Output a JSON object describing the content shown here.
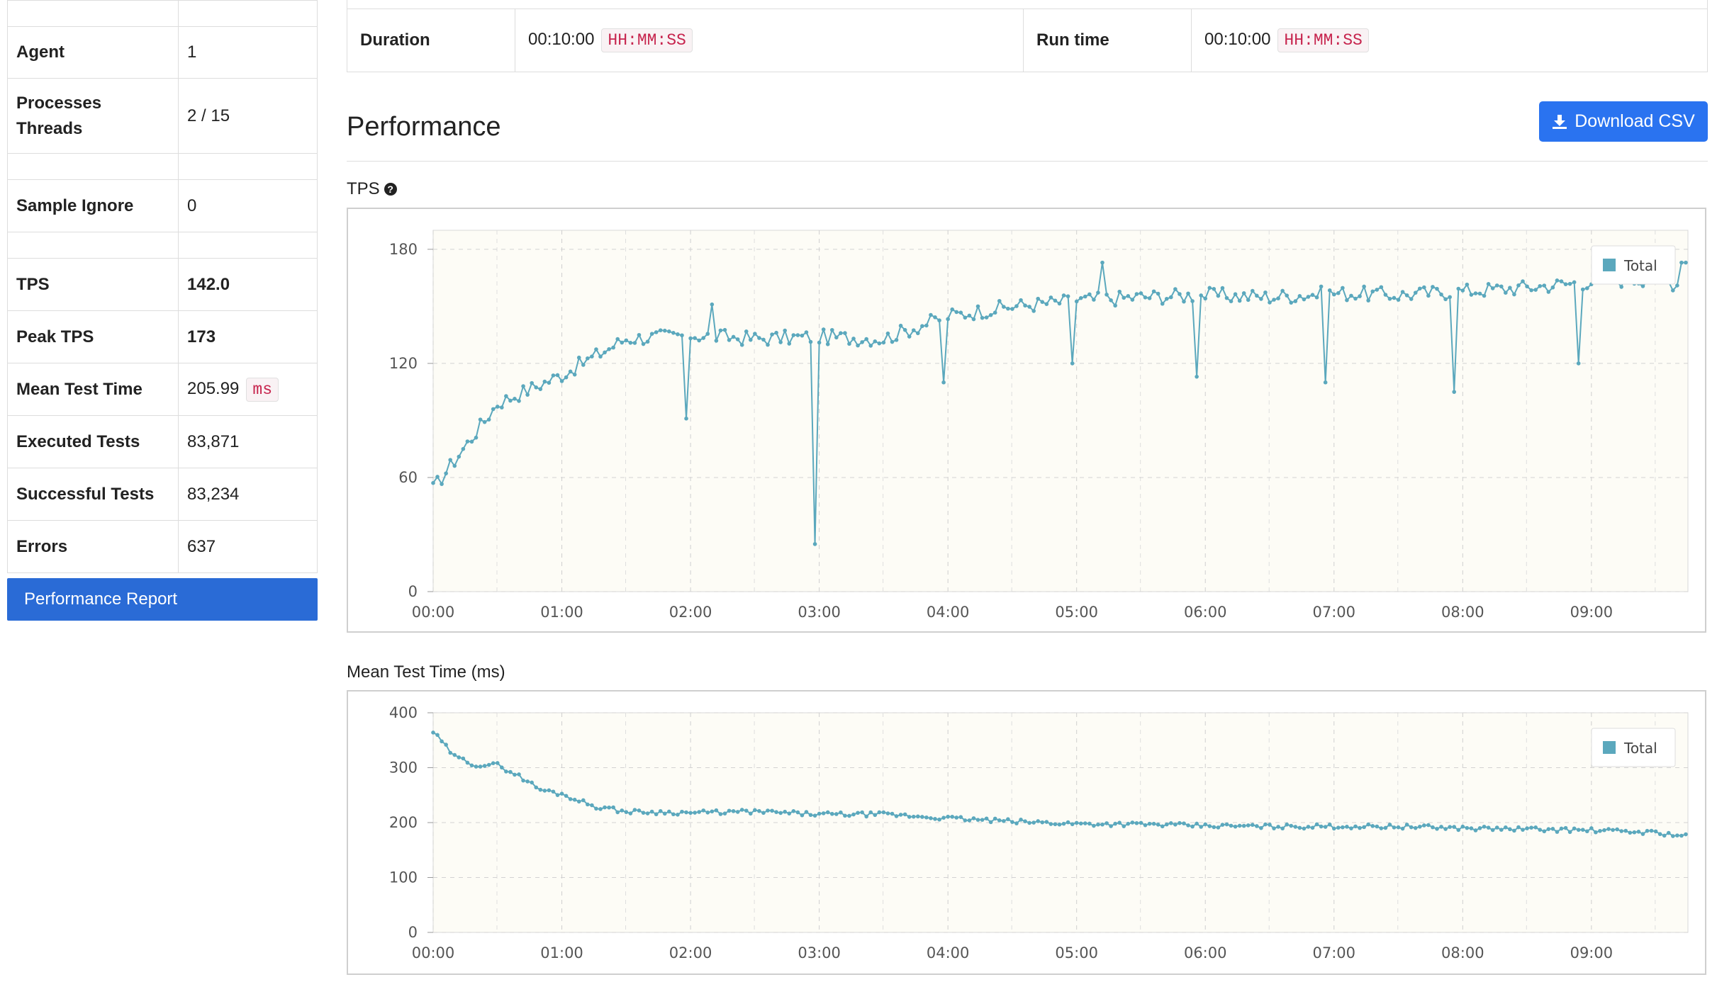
{
  "summary": {
    "rows": [
      {
        "label": "Agent",
        "value": "1"
      },
      {
        "label": "Processes\nThreads",
        "value": "2 / 15"
      },
      {
        "label": "Sample Ignore",
        "value": "0"
      },
      {
        "label": "TPS",
        "value": "142.0"
      },
      {
        "label": "Peak TPS",
        "value": "173"
      },
      {
        "label": "Mean Test Time",
        "value": "205.99",
        "unit": "ms"
      },
      {
        "label": "Executed Tests",
        "value": "83,871"
      },
      {
        "label": "Successful Tests",
        "value": "83,234"
      },
      {
        "label": "Errors",
        "value": "637"
      }
    ],
    "report_button": "Performance Report"
  },
  "info": {
    "duration_label": "Duration",
    "duration_value": "00:10:00",
    "duration_format": "HH:MM:SS",
    "runtime_label": "Run time",
    "runtime_value": "00:10:00",
    "runtime_format": "HH:MM:SS"
  },
  "performance": {
    "title": "Performance",
    "download_label": "Download CSV",
    "download_icon": "download-icon",
    "tps_label": "TPS",
    "help_icon": "question-circle-icon",
    "mtt_label": "Mean Test Time (ms)"
  },
  "colors": {
    "series": "#5ba8bd",
    "plot_bg": "#fdfcf6",
    "button_blue": "#2a73f0",
    "report_blue": "#2a6bd6",
    "link_blue": "#6fa8cf",
    "tag_red": "#c7254e"
  },
  "chart_data": [
    {
      "type": "line",
      "title": "TPS",
      "x_ticks": [
        "00:00",
        "01:00",
        "02:00",
        "03:00",
        "04:00",
        "05:00",
        "06:00",
        "07:00",
        "08:00",
        "09:00"
      ],
      "y_ticks": [
        "0",
        "60",
        "120",
        "180"
      ],
      "ylim": [
        0,
        190
      ],
      "xlim_seconds": [
        0,
        585
      ],
      "grid": true,
      "legend_position": "top-right",
      "series": [
        {
          "name": "Total",
          "x": [
            0,
            30,
            60,
            90,
            120,
            150,
            180,
            210,
            240,
            270,
            300,
            330,
            360,
            390,
            420,
            450,
            480,
            510,
            540,
            570,
            585
          ],
          "values": [
            54,
            99,
            114,
            133,
            135,
            133,
            134,
            133,
            145,
            150,
            153,
            155,
            156,
            155,
            157,
            156,
            158,
            160,
            163,
            165,
            160
          ]
        }
      ],
      "dips": [
        {
          "x": 118,
          "value": 91
        },
        {
          "x": 178,
          "value": 25
        },
        {
          "x": 238,
          "value": 110
        },
        {
          "x": 298,
          "value": 120
        },
        {
          "x": 356,
          "value": 113
        },
        {
          "x": 416,
          "value": 110
        },
        {
          "x": 476,
          "value": 105
        },
        {
          "x": 534,
          "value": 120
        }
      ],
      "peaks": [
        {
          "x": 130,
          "value": 151
        },
        {
          "x": 312,
          "value": 173
        },
        {
          "x": 583,
          "value": 173
        }
      ]
    },
    {
      "type": "line",
      "title": "Mean Test Time (ms)",
      "x_ticks": [
        "00:00",
        "01:00",
        "02:00",
        "03:00",
        "04:00",
        "05:00",
        "06:00",
        "07:00",
        "08:00",
        "09:00"
      ],
      "y_ticks": [
        "0",
        "100",
        "200",
        "300",
        "400"
      ],
      "ylim": [
        0,
        400
      ],
      "xlim_seconds": [
        0,
        585
      ],
      "grid": true,
      "legend_position": "top-right",
      "series": [
        {
          "name": "Total",
          "x": [
            0,
            10,
            20,
            30,
            40,
            50,
            60,
            75,
            90,
            120,
            150,
            180,
            210,
            240,
            270,
            300,
            330,
            360,
            390,
            420,
            450,
            480,
            510,
            540,
            570,
            585
          ],
          "values": [
            365,
            320,
            305,
            305,
            285,
            260,
            252,
            230,
            220,
            218,
            220,
            215,
            215,
            208,
            202,
            198,
            197,
            194,
            193,
            193,
            193,
            190,
            188,
            186,
            182,
            175
          ]
        }
      ]
    }
  ]
}
